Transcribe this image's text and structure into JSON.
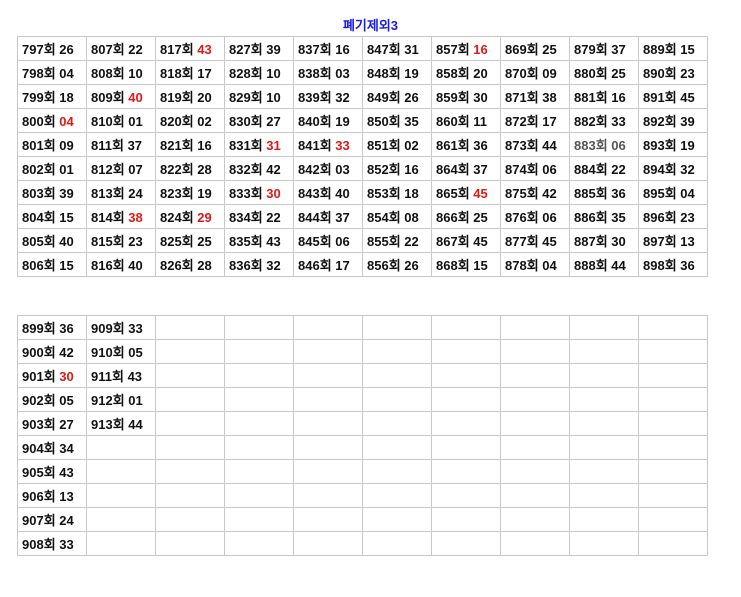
{
  "title": "폐기제외3",
  "colors": {
    "highlight": "#e01818",
    "title": "#1a1ae6",
    "muted": "#555555"
  },
  "table1": {
    "columns": [
      [
        [
          "797회",
          "26"
        ],
        [
          "798회",
          "04"
        ],
        [
          "799회",
          "18"
        ],
        [
          "800회",
          "04",
          "red"
        ],
        [
          "801회",
          "09"
        ],
        [
          "802회",
          "01"
        ],
        [
          "803회",
          "39"
        ],
        [
          "804회",
          "15"
        ],
        [
          "805회",
          "40"
        ],
        [
          "806회",
          "15"
        ]
      ],
      [
        [
          "807회",
          "22"
        ],
        [
          "808회",
          "10"
        ],
        [
          "809회",
          "40",
          "red"
        ],
        [
          "810회",
          "01"
        ],
        [
          "811회",
          "37"
        ],
        [
          "812회",
          "07"
        ],
        [
          "813회",
          "24"
        ],
        [
          "814회",
          "38",
          "red"
        ],
        [
          "815회",
          "23"
        ],
        [
          "816회",
          "40"
        ]
      ],
      [
        [
          "817회",
          "43",
          "red"
        ],
        [
          "818회",
          "17"
        ],
        [
          "819회",
          "20"
        ],
        [
          "820회",
          "02"
        ],
        [
          "821회",
          "16"
        ],
        [
          "822회",
          "28"
        ],
        [
          "823회",
          "19"
        ],
        [
          "824회",
          "29",
          "red"
        ],
        [
          "825회",
          "25"
        ],
        [
          "826회",
          "28"
        ]
      ],
      [
        [
          "827회",
          "39"
        ],
        [
          "828회",
          "10"
        ],
        [
          "829회",
          "10"
        ],
        [
          "830회",
          "27"
        ],
        [
          "831회",
          "31",
          "red"
        ],
        [
          "832회",
          "42"
        ],
        [
          "833회",
          "30",
          "red"
        ],
        [
          "834회",
          "22"
        ],
        [
          "835회",
          "43"
        ],
        [
          "836회",
          "32"
        ]
      ],
      [
        [
          "837회",
          "16"
        ],
        [
          "838회",
          "03"
        ],
        [
          "839회",
          "32"
        ],
        [
          "840회",
          "19"
        ],
        [
          "841회",
          "33",
          "red"
        ],
        [
          "842회",
          "03"
        ],
        [
          "843회",
          "40"
        ],
        [
          "844회",
          "37"
        ],
        [
          "845회",
          "06"
        ],
        [
          "846회",
          "17"
        ]
      ],
      [
        [
          "847회",
          "31"
        ],
        [
          "848회",
          "19"
        ],
        [
          "849회",
          "26"
        ],
        [
          "850회",
          "35"
        ],
        [
          "851회",
          "02"
        ],
        [
          "852회",
          "16"
        ],
        [
          "853회",
          "18"
        ],
        [
          "854회",
          "08"
        ],
        [
          "855회",
          "22"
        ],
        [
          "856회",
          "26"
        ]
      ],
      [
        [
          "857회",
          "16",
          "red"
        ],
        [
          "858회",
          "20"
        ],
        [
          "859회",
          "30"
        ],
        [
          "860회",
          "11"
        ],
        [
          "861회",
          "36"
        ],
        [
          "864회",
          "37"
        ],
        [
          "865회",
          "45",
          "red"
        ],
        [
          "866회",
          "25"
        ],
        [
          "867회",
          "45"
        ],
        [
          "868회",
          "15"
        ]
      ],
      [
        [
          "869회",
          "25"
        ],
        [
          "870회",
          "09"
        ],
        [
          "871회",
          "38"
        ],
        [
          "872회",
          "17"
        ],
        [
          "873회",
          "44"
        ],
        [
          "874회",
          "06"
        ],
        [
          "875회",
          "42"
        ],
        [
          "876회",
          "06"
        ],
        [
          "877회",
          "45"
        ],
        [
          "878회",
          "04"
        ]
      ],
      [
        [
          "879회",
          "37"
        ],
        [
          "880회",
          "25"
        ],
        [
          "881회",
          "16"
        ],
        [
          "882회",
          "33"
        ],
        [
          "883회",
          "06",
          "gray"
        ],
        [
          "884회",
          "22"
        ],
        [
          "885회",
          "36"
        ],
        [
          "886회",
          "35"
        ],
        [
          "887회",
          "30"
        ],
        [
          "888회",
          "44"
        ]
      ],
      [
        [
          "889회",
          "15"
        ],
        [
          "890회",
          "23"
        ],
        [
          "891회",
          "45"
        ],
        [
          "892회",
          "39"
        ],
        [
          "893회",
          "19"
        ],
        [
          "894회",
          "32"
        ],
        [
          "895회",
          "04"
        ],
        [
          "896회",
          "23"
        ],
        [
          "897회",
          "13"
        ],
        [
          "898회",
          "36"
        ]
      ]
    ]
  },
  "table2": {
    "columns": [
      [
        [
          "899회",
          "36"
        ],
        [
          "900회",
          "42"
        ],
        [
          "901회",
          "30",
          "red"
        ],
        [
          "902회",
          "05"
        ],
        [
          "903회",
          "27"
        ],
        [
          "904회",
          "34"
        ],
        [
          "905회",
          "43"
        ],
        [
          "906회",
          "13"
        ],
        [
          "907회",
          "24"
        ],
        [
          "908회",
          "33"
        ]
      ],
      [
        [
          "909회",
          "33"
        ],
        [
          "910회",
          "05"
        ],
        [
          "911회",
          "43"
        ],
        [
          "912회",
          "01"
        ],
        [
          "913회",
          "44"
        ]
      ],
      [],
      [],
      [],
      [],
      [],
      [],
      [],
      []
    ]
  }
}
